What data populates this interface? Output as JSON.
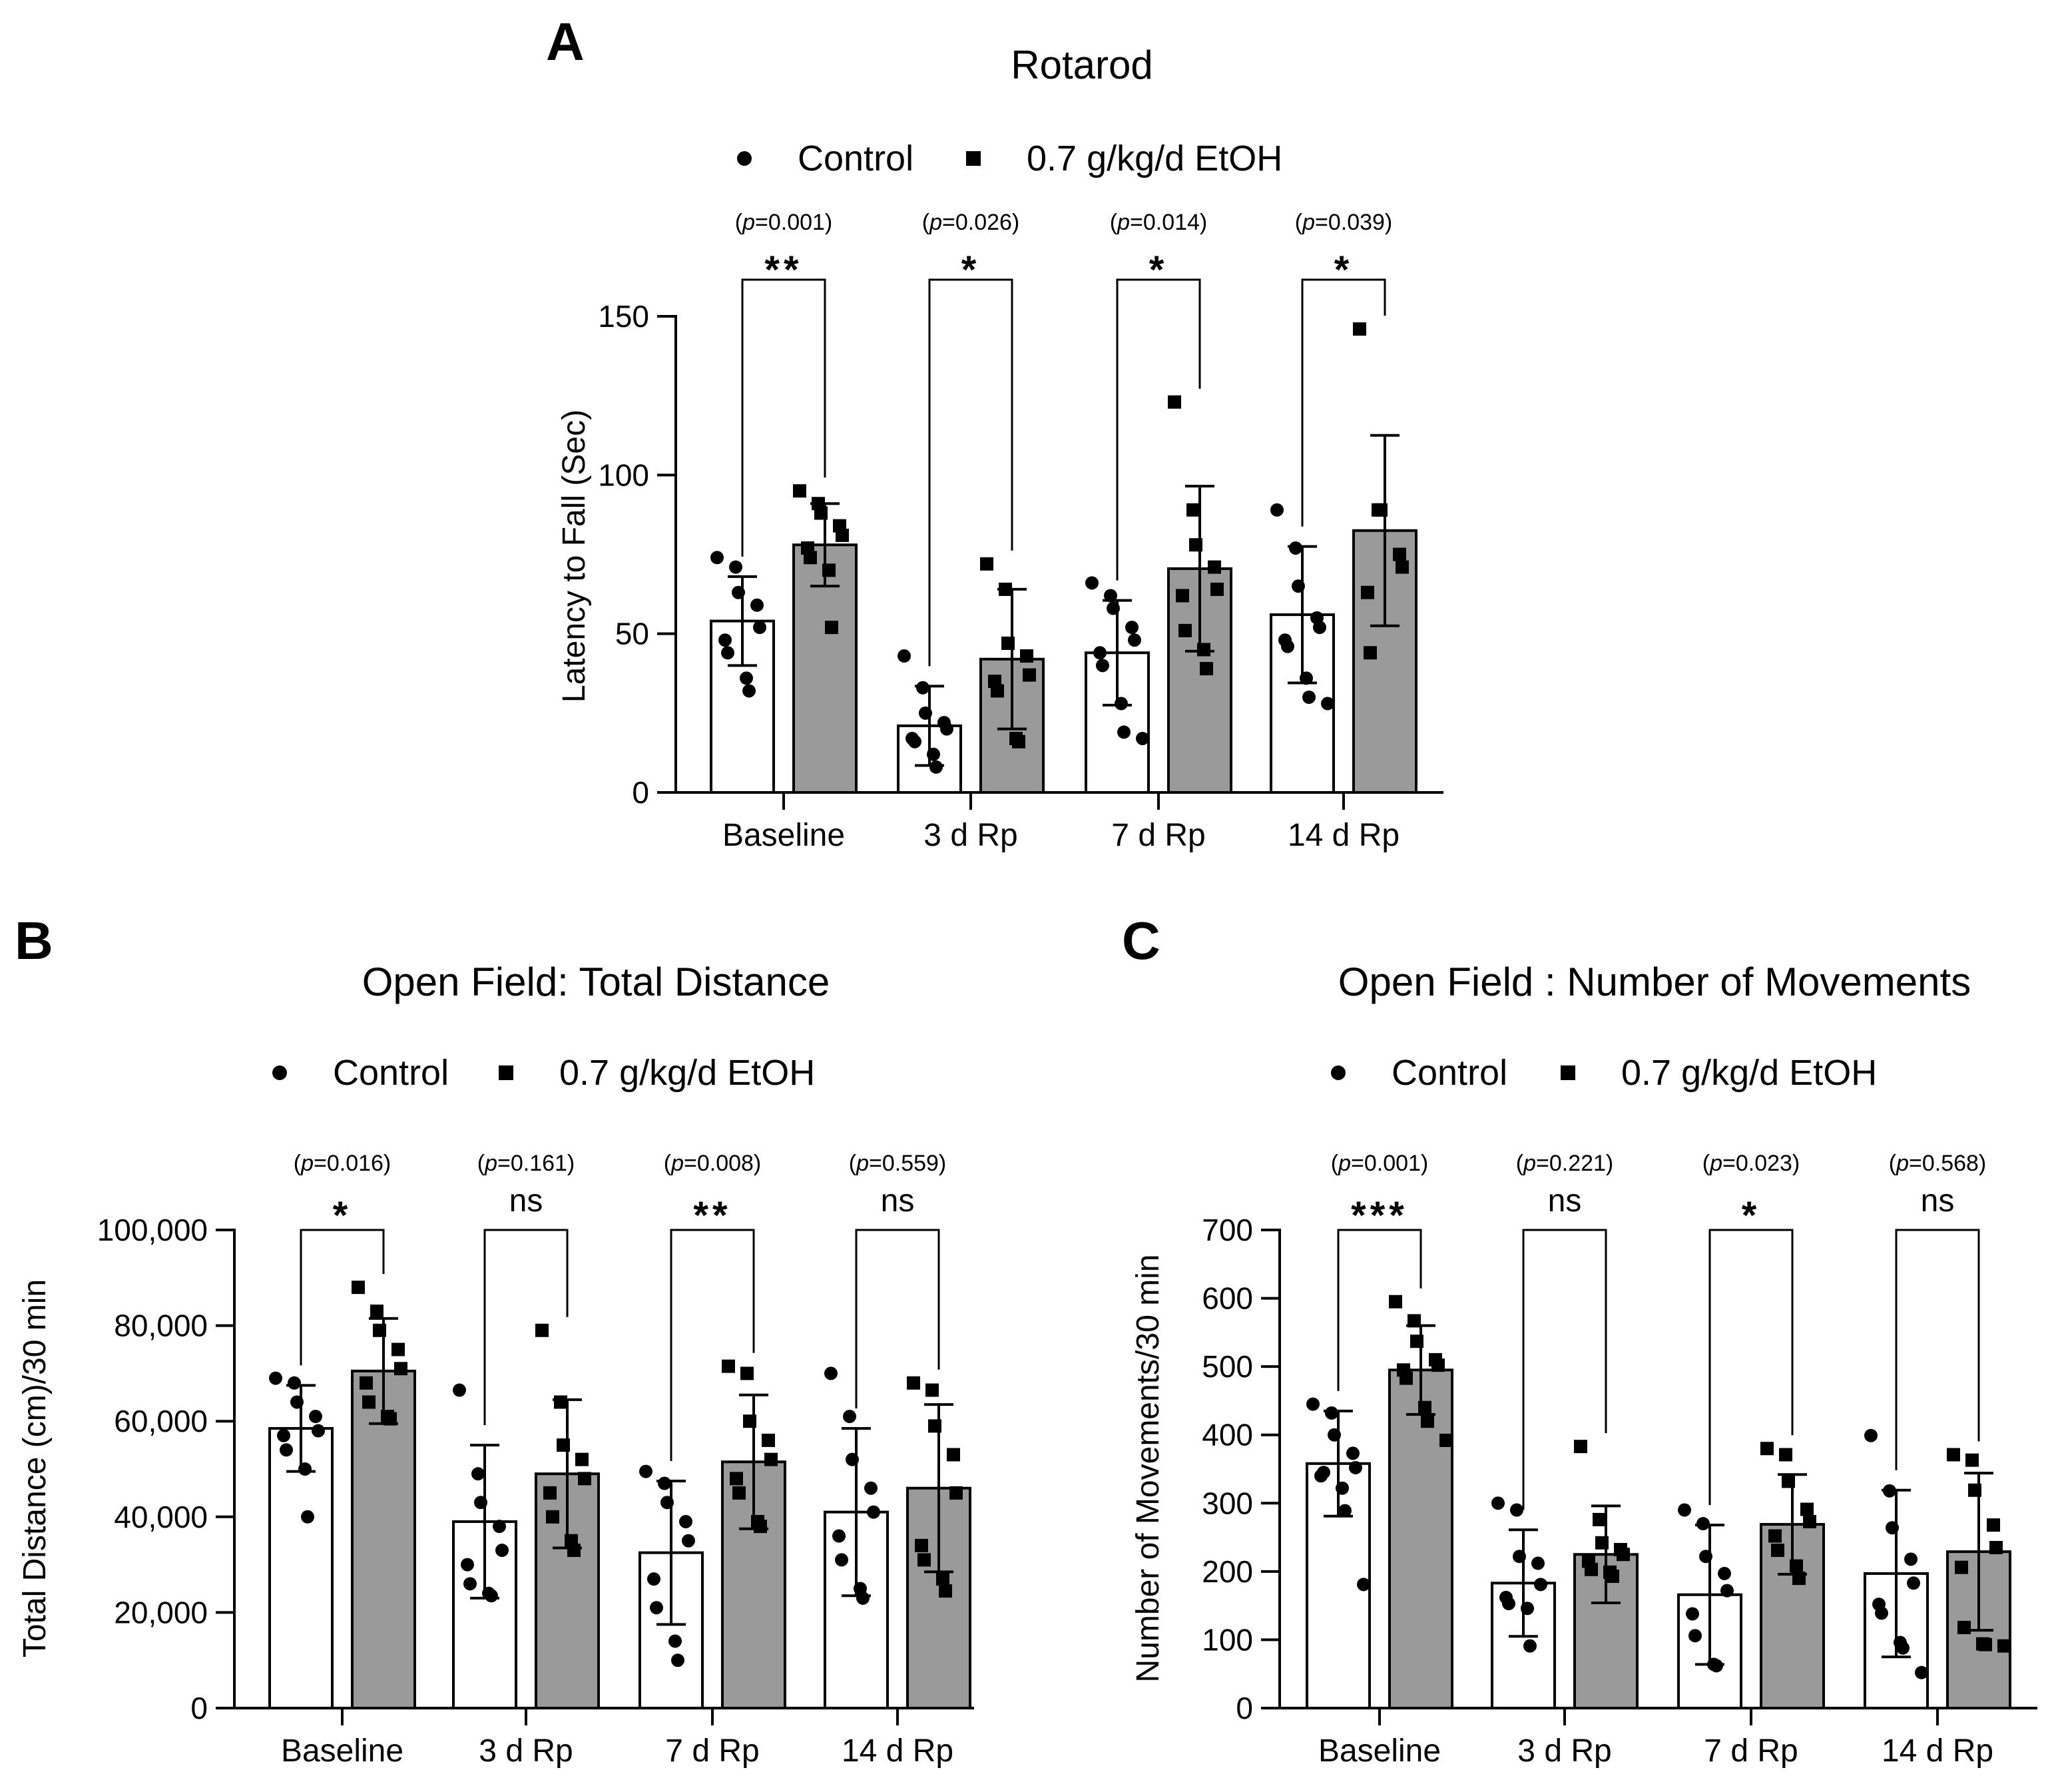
{
  "colors": {
    "control_fill": "#ffffff",
    "etoh_fill": "#9a9a9a",
    "ink": "#000000"
  },
  "chart_data": [
    {
      "panel": "A",
      "type": "bar",
      "title": "Rotarod",
      "ylabel": "Latency to Fall (Sec)",
      "xlabel": "",
      "ylim": [
        0,
        150
      ],
      "yticks": [
        0,
        50,
        100,
        150
      ],
      "ytick_labels": [
        "0",
        "50",
        "100",
        "150"
      ],
      "categories": [
        "Baseline",
        "3 d Rp",
        "7 d Rp",
        "14 d Rp"
      ],
      "legend": [
        "Control",
        "0.7 g/kg/d EtOH"
      ],
      "legend_position": "top-center",
      "series": [
        {
          "name": "Control",
          "values": [
            54,
            21,
            44,
            56
          ],
          "sd": [
            14,
            12.5,
            16.5,
            21.5
          ],
          "points": [
            [
              74,
              71,
              63,
              59,
              52,
              48,
              44,
              36,
              32
            ],
            [
              43,
              33,
              25,
              22,
              20,
              17,
              16,
              12,
              8
            ],
            [
              66,
              62,
              58,
              52,
              48,
              44,
              40,
              28,
              19,
              17
            ],
            [
              89,
              77,
              65,
              55,
              52,
              48,
              46,
              36,
              30,
              28
            ]
          ]
        },
        {
          "name": "0.7 g/kg/d EtOH",
          "values": [
            78,
            42,
            70.5,
            82.5
          ],
          "sd": [
            13,
            22,
            26,
            30
          ],
          "points": [
            [
              95,
              91,
              88,
              84,
              81,
              77,
              74,
              70,
              52
            ],
            [
              72,
              64,
              47,
              43,
              37,
              35,
              32,
              17,
              16
            ],
            [
              123,
              89,
              78,
              71,
              64,
              62,
              51,
              45,
              39
            ],
            [
              146,
              89,
              89,
              75,
              71,
              63,
              44
            ]
          ]
        }
      ],
      "significance": [
        {
          "p": "0.001",
          "stars": "**"
        },
        {
          "p": "0.026",
          "stars": "*"
        },
        {
          "p": "0.014",
          "stars": "*"
        },
        {
          "p": "0.039",
          "stars": "*"
        }
      ]
    },
    {
      "panel": "B",
      "type": "bar",
      "title": "Open Field: Total Distance",
      "ylabel": "Total Distance (cm)/30 min",
      "xlabel": "",
      "ylim": [
        0,
        100000
      ],
      "yticks": [
        0,
        20000,
        40000,
        60000,
        80000,
        100000
      ],
      "ytick_labels": [
        "0",
        "20,000",
        "40,000",
        "60,000",
        "80,000",
        "100,000"
      ],
      "categories": [
        "Baseline",
        "3 d Rp",
        "7 d Rp",
        "14 d Rp"
      ],
      "legend": [
        "Control",
        "0.7 g/kg/d EtOH"
      ],
      "legend_position": "top-center",
      "series": [
        {
          "name": "Control",
          "values": [
            58500,
            39000,
            32500,
            41000
          ],
          "sd": [
            9000,
            16000,
            15000,
            17500
          ],
          "points": [
            [
              69000,
              68000,
              64000,
              61000,
              58000,
              57000,
              54000,
              50000,
              40000
            ],
            [
              66500,
              49000,
              43000,
              38000,
              33000,
              30000,
              26000,
              24000,
              23500
            ],
            [
              49500,
              47000,
              43000,
              39000,
              35000,
              27000,
              21000,
              14000,
              10000
            ],
            [
              70000,
              61000,
              52000,
              46000,
              41000,
              36000,
              31000,
              25000,
              23000
            ]
          ]
        },
        {
          "name": "0.7 g/kg/d EtOH",
          "values": [
            70500,
            49000,
            51500,
            46000
          ],
          "sd": [
            11000,
            15500,
            14000,
            17500
          ],
          "points": [
            [
              88000,
              83000,
              79000,
              75000,
              71000,
              68000,
              64000,
              61000,
              60500
            ],
            [
              79000,
              64000,
              55000,
              52000,
              48000,
              45000,
              40000,
              35000,
              33000
            ],
            [
              71500,
              70000,
              60000,
              56000,
              52000,
              48000,
              45000,
              39000,
              38000
            ],
            [
              68000,
              66500,
              59000,
              53000,
              45000,
              34000,
              31000,
              27000,
              24500
            ]
          ]
        }
      ],
      "significance": [
        {
          "p": "0.016",
          "stars": "*"
        },
        {
          "p": "0.161",
          "stars": "ns"
        },
        {
          "p": "0.008",
          "stars": "**"
        },
        {
          "p": "0.559",
          "stars": "ns"
        }
      ]
    },
    {
      "panel": "C",
      "type": "bar",
      "title": "Open Field : Number of Movements",
      "ylabel": "Number of Movements/30 min",
      "xlabel": "",
      "ylim": [
        0,
        700
      ],
      "yticks": [
        0,
        100,
        200,
        300,
        400,
        500,
        600,
        700
      ],
      "ytick_labels": [
        "0",
        "100",
        "200",
        "300",
        "400",
        "500",
        "600",
        "700"
      ],
      "categories": [
        "Baseline",
        "3 d Rp",
        "7 d Rp",
        "14 d Rp"
      ],
      "legend": [
        "Control",
        "0.7 g/kg/d EtOH"
      ],
      "legend_position": "top-center",
      "series": [
        {
          "name": "Control",
          "values": [
            358,
            183,
            166,
            197
          ],
          "sd": [
            77,
            78,
            102,
            122
          ],
          "points": [
            [
              445,
              432,
              400,
              373,
              352,
              340,
              345,
              322,
              289,
              181
            ],
            [
              300,
              290,
              222,
              212,
              181,
              162,
              153,
              146,
              91
            ],
            [
              290,
              270,
              222,
              197,
              172,
              138,
              106,
              64,
              62
            ],
            [
              399,
              318,
              264,
              218,
              183,
              152,
              139,
              96,
              88,
              52
            ]
          ]
        },
        {
          "name": "0.7 g/kg/d EtOH",
          "values": [
            495,
            225,
            269,
            229
          ],
          "sd": [
            65,
            71,
            73,
            115
          ],
          "points": [
            [
              595,
              567,
              537,
              510,
              502,
              495,
              483,
              440,
              420,
              392
            ],
            [
              383,
              276,
              242,
              232,
              225,
              215,
              203,
              199,
              193
            ],
            [
              380,
              371,
              332,
              291,
              273,
              252,
              231,
              208,
              190
            ],
            [
              371,
              363,
              319,
              268,
              235,
              206,
              118,
              94,
              93,
              91
            ]
          ]
        }
      ],
      "significance": [
        {
          "p": "0.001",
          "stars": "***"
        },
        {
          "p": "0.221",
          "stars": "ns"
        },
        {
          "p": "0.023",
          "stars": "*"
        },
        {
          "p": "0.568",
          "stars": "ns"
        }
      ]
    }
  ]
}
